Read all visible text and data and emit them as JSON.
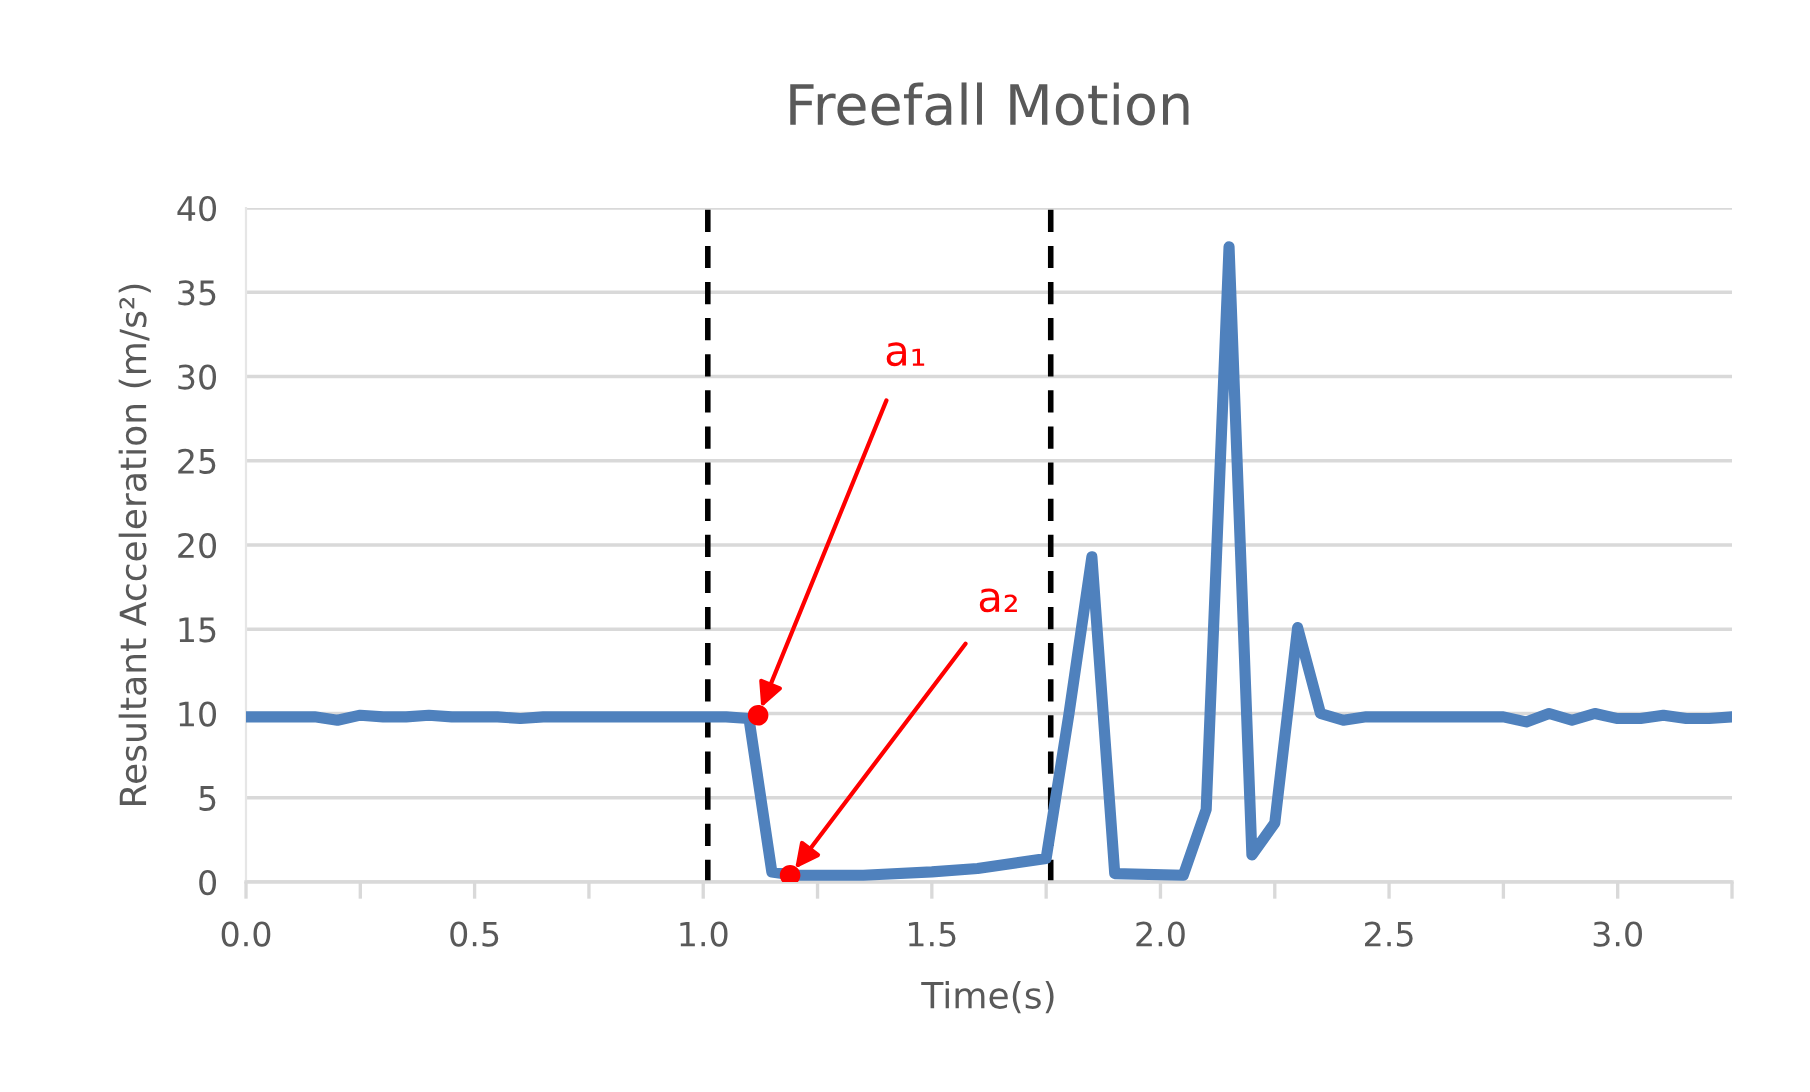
{
  "chart_data": {
    "type": "line",
    "title": "Freefall Motion",
    "xlabel": "Time(s)",
    "ylabel": "Resultant Acceleration (m/s²)",
    "xlim": [
      0,
      3.25
    ],
    "xticks": [
      {
        "value": 0,
        "label": "0.0"
      },
      {
        "value": 0.25,
        "label": null
      },
      {
        "value": 0.5,
        "label": "0.5"
      },
      {
        "value": 0.75,
        "label": null
      },
      {
        "value": 1.0,
        "label": "1.0"
      },
      {
        "value": 1.25,
        "label": null
      },
      {
        "value": 1.5,
        "label": "1.5"
      },
      {
        "value": 1.75,
        "label": null
      },
      {
        "value": 2.0,
        "label": "2.0"
      },
      {
        "value": 2.25,
        "label": null
      },
      {
        "value": 2.5,
        "label": "2.5"
      },
      {
        "value": 2.75,
        "label": null
      },
      {
        "value": 3.0,
        "label": "3.0"
      },
      {
        "value": 3.25,
        "label": null
      }
    ],
    "ylim": [
      0,
      40
    ],
    "yticks": [
      0,
      5,
      10,
      15,
      20,
      25,
      30,
      35,
      40
    ],
    "grid": "y",
    "legend": false,
    "marker": "none",
    "line_style": "solid",
    "series": [
      {
        "color": "#4f81bd",
        "x": [
          0,
          0.05,
          0.1,
          0.15,
          0.2,
          0.25,
          0.3,
          0.35,
          0.4,
          0.45,
          0.5,
          0.55,
          0.6,
          0.65,
          0.7,
          0.75,
          0.8,
          0.85,
          0.9,
          0.95,
          1.0,
          1.05,
          1.1,
          1.15,
          1.2,
          1.35,
          1.5,
          1.6,
          1.75,
          1.8,
          1.85,
          1.9,
          2.05,
          2.1,
          2.15,
          2.2,
          2.25,
          2.3,
          2.35,
          2.4,
          2.45,
          2.5,
          2.6,
          2.7,
          2.75,
          2.8,
          2.85,
          2.9,
          2.95,
          3.0,
          3.05,
          3.1,
          3.15,
          3.2,
          3.25
        ],
        "values": [
          9.8,
          9.8,
          9.8,
          9.8,
          9.6,
          9.9,
          9.8,
          9.8,
          9.9,
          9.8,
          9.8,
          9.8,
          9.7,
          9.8,
          9.8,
          9.8,
          9.8,
          9.8,
          9.8,
          9.8,
          9.8,
          9.8,
          9.7,
          0.6,
          0.4,
          0.4,
          0.6,
          0.8,
          1.4,
          10.0,
          19.3,
          0.5,
          0.4,
          4.3,
          37.7,
          1.6,
          3.5,
          15.1,
          10.0,
          9.6,
          9.8,
          9.8,
          9.8,
          9.8,
          9.8,
          9.5,
          10.0,
          9.6,
          10.0,
          9.7,
          9.7,
          9.9,
          9.7,
          9.7,
          9.8
        ]
      },
      {
        "type": "scatter",
        "color": "#ff0000",
        "marker": "circle",
        "x": [
          1.12,
          1.19
        ],
        "values": [
          9.9,
          0.4
        ]
      }
    ],
    "ref_lines": [
      {
        "axis": "x",
        "value": 1.01,
        "color": "#000000",
        "line_style": "dashed"
      },
      {
        "axis": "x",
        "value": 1.76,
        "color": "#000000",
        "line_style": "dashed"
      }
    ],
    "annotations": [
      {
        "text": "a₁",
        "x": 1.12,
        "y": 9.9
      },
      {
        "text": "a₂",
        "x": 1.19,
        "y": 0.4
      }
    ]
  }
}
